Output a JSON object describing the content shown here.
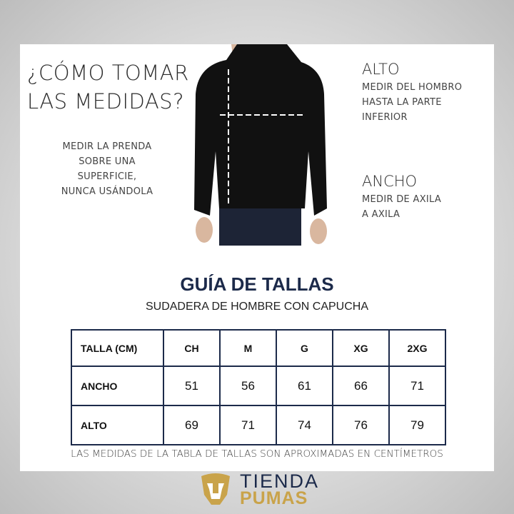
{
  "heading": {
    "line1": "¿CÓMO TOMAR",
    "line2": "LAS MEDIDAS?"
  },
  "instruction": [
    "MEDIR LA PRENDA",
    "SOBRE UNA",
    "SUPERFICIE,",
    "NUNCA USÁNDOLA"
  ],
  "alto": {
    "title": "ALTO",
    "lines": [
      "MEDIR DEL HOMBRO",
      "HASTA LA PARTE",
      "INFERIOR"
    ]
  },
  "ancho": {
    "title": "ANCHO",
    "lines": [
      "MEDIR DE AXILA",
      "A AXILA"
    ]
  },
  "guide": {
    "title": "GUÍA DE TALLAS",
    "subtitle": "SUDADERA DE HOMBRE CON CAPUCHA"
  },
  "table": {
    "headers": [
      "TALLA (CM)",
      "CH",
      "M",
      "G",
      "XG",
      "2XG"
    ],
    "rows": [
      {
        "label": "ANCHO",
        "values": [
          "51",
          "56",
          "61",
          "66",
          "71"
        ]
      },
      {
        "label": "ALTO",
        "values": [
          "69",
          "71",
          "74",
          "76",
          "79"
        ]
      }
    ]
  },
  "note": "LAS MEDIDAS DE LA TABLA DE TALLAS SON APROXIMADAS EN CENTÍMETROS",
  "logo": {
    "line1": "TIENDA",
    "line2": "PUMAS"
  },
  "colors": {
    "navy": "#1c2a4a",
    "gold": "#c9a34a"
  }
}
